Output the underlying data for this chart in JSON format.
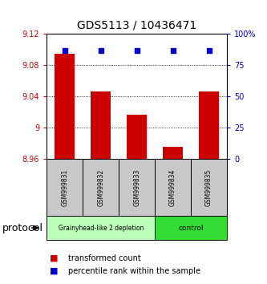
{
  "title": "GDS5113 / 10436471",
  "samples": [
    "GSM999831",
    "GSM999832",
    "GSM999833",
    "GSM999834",
    "GSM999835"
  ],
  "bar_values": [
    9.095,
    9.047,
    9.017,
    8.976,
    9.047
  ],
  "percentile_values": [
    87,
    87,
    87,
    87,
    87
  ],
  "ylim_left": [
    8.96,
    9.12
  ],
  "ylim_right": [
    0,
    100
  ],
  "yticks_left": [
    8.96,
    9.0,
    9.04,
    9.08,
    9.12
  ],
  "ytick_labels_left": [
    "8.96",
    "9",
    "9.04",
    "9.08",
    "9.12"
  ],
  "yticks_right": [
    0,
    25,
    50,
    75,
    100
  ],
  "ytick_labels_right": [
    "0",
    "25",
    "50",
    "75",
    "100%"
  ],
  "bar_color": "#cc0000",
  "dot_color": "#0000cc",
  "gridline_ticks": [
    9.0,
    9.04,
    9.08
  ],
  "groups": [
    {
      "label": "Grainyhead-like 2 depletion",
      "indices": [
        0,
        1,
        2
      ],
      "color": "#bbffbb"
    },
    {
      "label": "control",
      "indices": [
        3,
        4
      ],
      "color": "#33dd33"
    }
  ],
  "group_label": "protocol",
  "legend_bar_label": "transformed count",
  "legend_dot_label": "percentile rank within the sample",
  "sample_label_bg": "#c8c8c8",
  "title_fontsize": 10,
  "tick_fontsize": 7,
  "sample_fontsize": 5.5,
  "group_fontsize": 6.5,
  "legend_fontsize": 7,
  "protocol_fontsize": 9
}
